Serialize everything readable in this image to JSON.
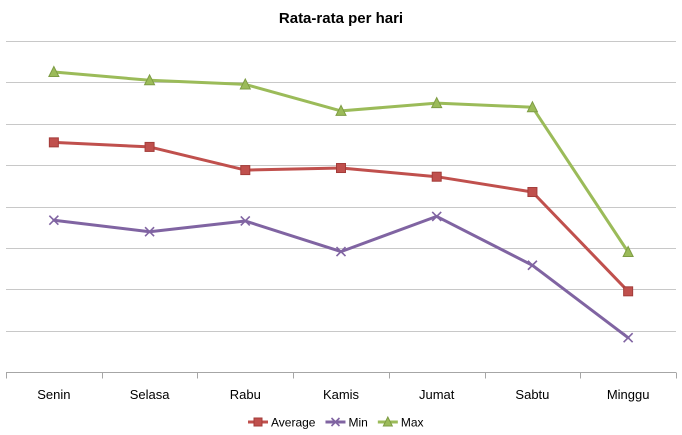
{
  "chart_data": {
    "type": "line",
    "title": "Rata-rata per hari",
    "xlabel": "",
    "ylabel": "",
    "categories": [
      "Senin",
      "Selasa",
      "Rabu",
      "Kamis",
      "Jumat",
      "Sabtu",
      "Minggu"
    ],
    "ylim": [
      0,
      8
    ],
    "yticks_labeled": false,
    "grid": true,
    "legend_position": "bottom",
    "series": [
      {
        "name": "Average",
        "color": "#c0504d",
        "marker": "square",
        "values": [
          5.55,
          5.44,
          4.88,
          4.93,
          4.72,
          4.35,
          1.95
        ]
      },
      {
        "name": "Min",
        "color": "#8064a2",
        "marker": "x",
        "values": [
          3.67,
          3.39,
          3.65,
          2.91,
          3.76,
          2.58,
          0.83
        ]
      },
      {
        "name": "Max",
        "color": "#9bbb59",
        "marker": "triangle",
        "values": [
          7.25,
          7.05,
          6.95,
          6.31,
          6.5,
          6.4,
          2.9
        ]
      }
    ]
  }
}
